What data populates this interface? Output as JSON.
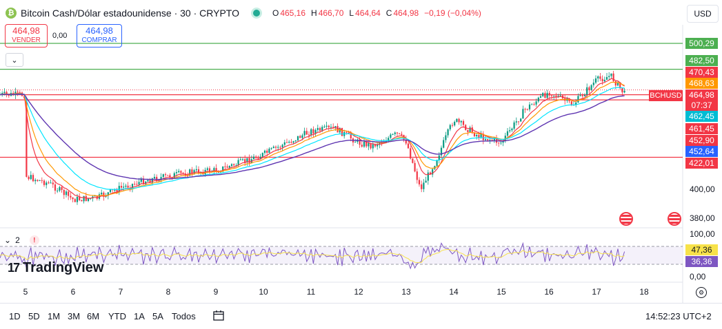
{
  "header": {
    "coin_glyph": "₿",
    "title": "Bitcoin Cash/Dólar estadounidense · 30 · CRYPTO",
    "ohlc": {
      "o_key": "O",
      "o_val": "465,16",
      "h_key": "H",
      "h_val": "466,70",
      "l_key": "L",
      "l_val": "464,64",
      "c_key": "C",
      "c_val": "464,98",
      "change": "−0,19 (−0,04%)"
    }
  },
  "trade": {
    "sell_price": "464,98",
    "sell_label": "VENDER",
    "spread": "0,00",
    "buy_price": "464,98",
    "buy_label": "COMPRAR"
  },
  "currency_selector": "USD",
  "collapse_icon": "chevron-down-icon",
  "price_axis": {
    "ticks": [
      "400,00",
      "380,00"
    ],
    "labels": [
      {
        "text": "500,29",
        "color": "#4caf50"
      },
      {
        "text": "482,50",
        "color": "#4caf50"
      },
      {
        "text": "470,43",
        "color": "#f23645"
      },
      {
        "text": "468,63",
        "color": "#ff9800"
      },
      {
        "text": "464,98",
        "color": "#f23645"
      },
      {
        "text": "07:37",
        "color": "#f23645"
      },
      {
        "text": "462,45",
        "color": "#00bcd4"
      },
      {
        "text": "461,45",
        "color": "#f23645"
      },
      {
        "text": "452,90",
        "color": "#f23645"
      },
      {
        "text": "452,64",
        "color": "#2962ff"
      },
      {
        "text": "422,01",
        "color": "#f23645"
      }
    ],
    "symbol_tag": "BCHUSD"
  },
  "rsi": {
    "collapse_icon": "chevron-down-icon",
    "count": "2",
    "warning": "!",
    "axis_ticks": [
      "100,00",
      "0,00"
    ],
    "labels": [
      {
        "text": "47,36",
        "color": "#f7e24a",
        "textColor": "#131722"
      },
      {
        "text": "36,36",
        "color": "#7e57c2",
        "textColor": "#ffffff"
      }
    ]
  },
  "brand": {
    "logo_mark": "17",
    "name": "TradingView"
  },
  "time_axis": {
    "ticks": [
      "5",
      "6",
      "7",
      "8",
      "9",
      "10",
      "11",
      "12",
      "13",
      "14",
      "15",
      "16",
      "17",
      "18"
    ]
  },
  "timeframes": [
    "1D",
    "5D",
    "1M",
    "3M",
    "6M",
    "YTD",
    "1A",
    "5A",
    "Todos"
  ],
  "clock": "14:52:23 UTC+2",
  "chart_data": {
    "type": "candlestick",
    "x": [
      "5",
      "6",
      "7",
      "8",
      "9",
      "10",
      "11",
      "12",
      "13",
      "14",
      "15",
      "16",
      "17",
      "18"
    ],
    "price_scale": {
      "ticks": [
        400,
        380
      ],
      "approx_range": [
        372,
        506
      ]
    },
    "horizontal_levels": [
      {
        "value": 500.29,
        "color": "#4caf50"
      },
      {
        "value": 482.5,
        "color": "#4caf50"
      },
      {
        "value": 464.98,
        "color": "#f23645"
      },
      {
        "value": 461.45,
        "color": "#f23645"
      },
      {
        "value": 422.01,
        "color": "#f23645"
      }
    ],
    "close_path": [
      [
        "5",
        409
      ],
      [
        "5.5",
        404
      ],
      [
        "6",
        393
      ],
      [
        "6.5",
        394
      ],
      [
        "7",
        401
      ],
      [
        "7.5",
        406
      ],
      [
        "8",
        409
      ],
      [
        "8.5",
        412
      ],
      [
        "9",
        413
      ],
      [
        "9.5",
        418
      ],
      [
        "10",
        424
      ],
      [
        "10.5",
        432
      ],
      [
        "11",
        440
      ],
      [
        "11.5",
        442
      ],
      [
        "12",
        432
      ],
      [
        "12.3",
        430
      ],
      [
        "12.8",
        438
      ],
      [
        "13",
        433
      ],
      [
        "13.3",
        400
      ],
      [
        "13.6",
        418
      ],
      [
        "14",
        448
      ],
      [
        "14.5",
        437
      ],
      [
        "15",
        432
      ],
      [
        "15.5",
        455
      ],
      [
        "16",
        467
      ],
      [
        "16.5",
        458
      ],
      [
        "17",
        475
      ],
      [
        "17.3",
        478
      ],
      [
        "17.6",
        465
      ]
    ],
    "ema_levels": {
      "fast": 468.63,
      "mid": 462.45,
      "slow": 452.64
    },
    "rsi": {
      "range": [
        0,
        100
      ],
      "values": {
        "signal": 47.36,
        "rsi": 36.36
      }
    }
  }
}
